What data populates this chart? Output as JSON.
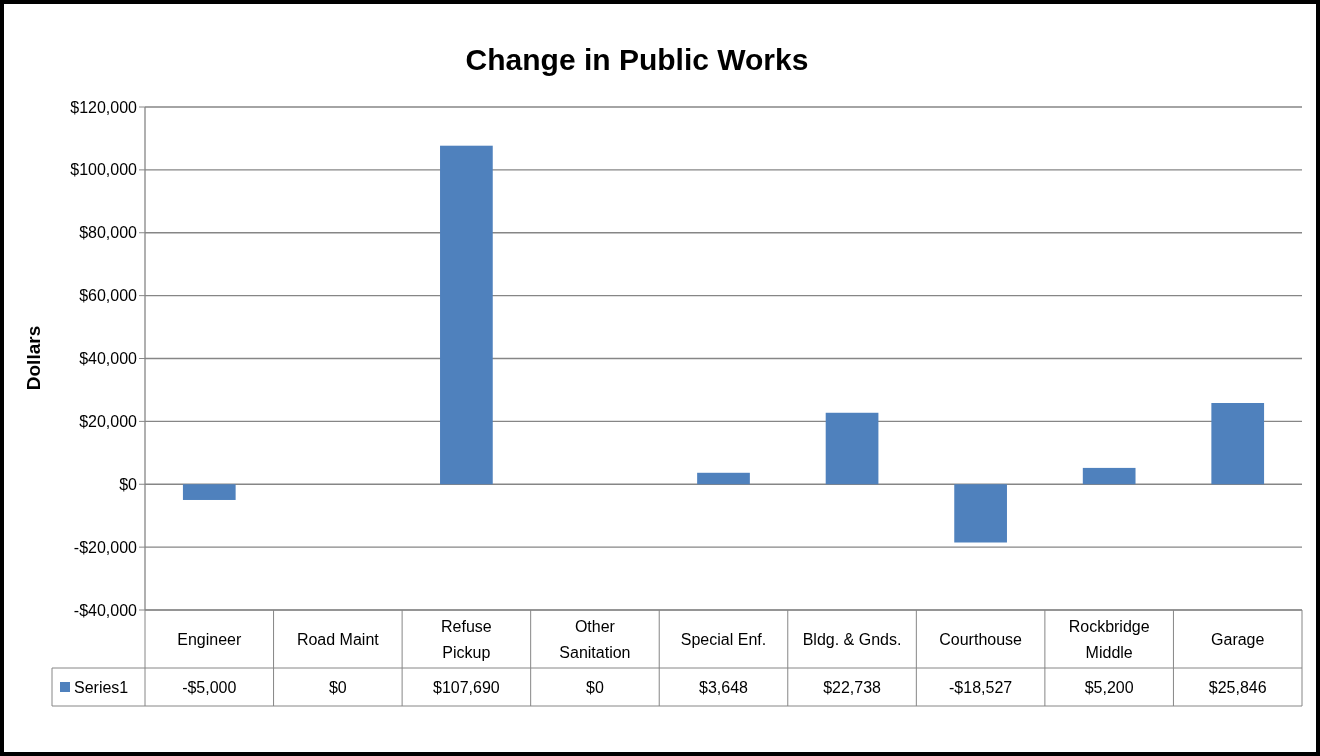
{
  "chart_data": {
    "type": "bar",
    "title": "Change in Public Works",
    "ylabel": "Dollars",
    "categories": [
      "Engineer",
      "Road Maint",
      "Refuse Pickup",
      "Other Sanitation",
      "Special Enf.",
      "Bldg. & Gnds.",
      "Courthouse",
      "Rockbridge Middle",
      "Garage"
    ],
    "series": [
      {
        "name": "Series1",
        "color": "#4f81bd",
        "values": [
          -5000,
          0,
          107690,
          0,
          3648,
          22738,
          -18527,
          5200,
          25846
        ],
        "value_labels": [
          "-$5,000",
          "$0",
          "$107,690",
          "$0",
          "$3,648",
          "$22,738",
          "-$18,527",
          "$5,200",
          "$25,846"
        ]
      }
    ],
    "ylim": [
      -40000,
      120000
    ],
    "yticks": [
      {
        "value": -40000,
        "label": "-$40,000"
      },
      {
        "value": -20000,
        "label": "-$20,000"
      },
      {
        "value": 0,
        "label": "$0"
      },
      {
        "value": 20000,
        "label": "$20,000"
      },
      {
        "value": 40000,
        "label": "$40,000"
      },
      {
        "value": 60000,
        "label": "$60,000"
      },
      {
        "value": 80000,
        "label": "$80,000"
      },
      {
        "value": 100000,
        "label": "$100,000"
      },
      {
        "value": 120000,
        "label": "$120,000"
      }
    ],
    "grid": "y",
    "legend": "bottom"
  }
}
